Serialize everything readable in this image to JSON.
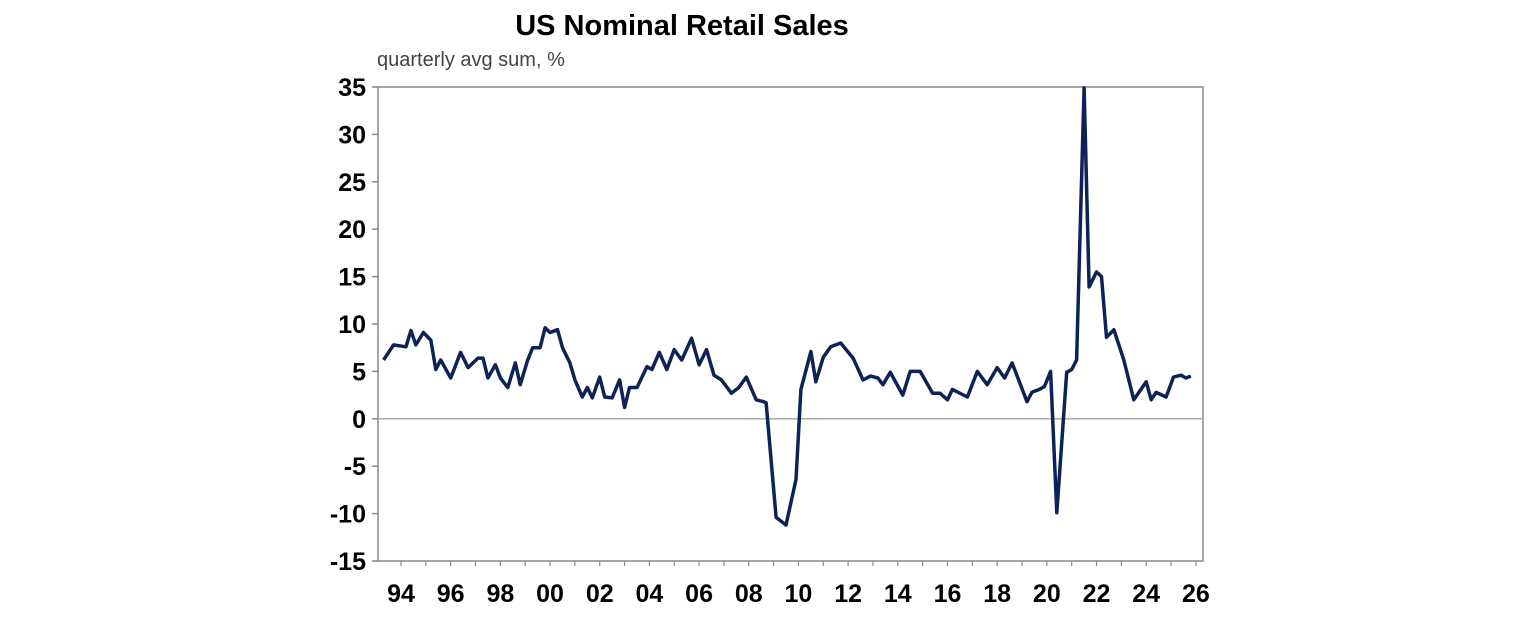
{
  "chart_data": {
    "type": "line",
    "title": "US Nominal Retail Sales",
    "subtitle": "quarterly avg sum, %",
    "xlabel": "",
    "ylabel": "",
    "ylim": [
      -15,
      35
    ],
    "xlim": [
      1993.1,
      2026.3
    ],
    "yticks": [
      35,
      30,
      25,
      20,
      15,
      10,
      5,
      0,
      -5,
      -10,
      -15
    ],
    "xticks": [
      {
        "year": 1994,
        "label": "94"
      },
      {
        "year": 1996,
        "label": "96"
      },
      {
        "year": 1998,
        "label": "98"
      },
      {
        "year": 2000,
        "label": "00"
      },
      {
        "year": 2002,
        "label": "02"
      },
      {
        "year": 2004,
        "label": "04"
      },
      {
        "year": 2006,
        "label": "06"
      },
      {
        "year": 2008,
        "label": "08"
      },
      {
        "year": 2010,
        "label": "10"
      },
      {
        "year": 2012,
        "label": "12"
      },
      {
        "year": 2014,
        "label": "14"
      },
      {
        "year": 2016,
        "label": "16"
      },
      {
        "year": 2018,
        "label": "18"
      },
      {
        "year": 2020,
        "label": "20"
      },
      {
        "year": 2022,
        "label": "22"
      },
      {
        "year": 2024,
        "label": "24"
      },
      {
        "year": 2026,
        "label": "26"
      }
    ],
    "grid": false,
    "zero_line": true,
    "line_color": "#0d2257",
    "series": [
      {
        "x": [
          1993.3,
          1993.7,
          1994.2,
          1994.4,
          1994.6,
          1994.9,
          1995.2,
          1995.4,
          1995.6,
          1996.0,
          1996.4,
          1996.7,
          1997.1,
          1997.3,
          1997.5,
          1997.8,
          1998.0,
          1998.3,
          1998.6,
          1998.8,
          1999.1,
          1999.3,
          1999.6,
          1999.8,
          2000.0,
          2000.3,
          2000.5,
          2000.8,
          2001.0,
          2001.3,
          2001.5,
          2001.7,
          2002.0,
          2002.2,
          2002.5,
          2002.8,
          2003.0,
          2003.2,
          2003.5,
          2003.9,
          2004.1,
          2004.4,
          2004.7,
          2005.0,
          2005.3,
          2005.7,
          2006.0,
          2006.3,
          2006.6,
          2006.9,
          2007.3,
          2007.6,
          2007.9,
          2008.3,
          2008.6,
          2008.7,
          2009.1,
          2009.5,
          2009.9,
          2010.1,
          2010.5,
          2010.7,
          2011.0,
          2011.3,
          2011.7,
          2012.2,
          2012.6,
          2012.9,
          2013.2,
          2013.4,
          2013.7,
          2014.2,
          2014.5,
          2014.9,
          2015.4,
          2015.7,
          2016.0,
          2016.2,
          2016.8,
          2017.2,
          2017.6,
          2018.0,
          2018.3,
          2018.6,
          2019.2,
          2019.4,
          2019.7,
          2019.9,
          2020.15,
          2020.4,
          2020.8,
          2021.0,
          2021.2,
          2021.5,
          2021.7,
          2022.0,
          2022.2,
          2022.4,
          2022.7,
          2023.1,
          2023.5,
          2024.0,
          2024.2,
          2024.4,
          2024.8,
          2025.1,
          2025.4,
          2025.6,
          2025.8
        ],
        "y": [
          6.2,
          7.8,
          7.6,
          9.3,
          7.8,
          9.1,
          8.3,
          5.2,
          6.2,
          4.3,
          7.0,
          5.4,
          6.4,
          6.4,
          4.3,
          5.7,
          4.3,
          3.3,
          5.9,
          3.6,
          6.2,
          7.5,
          7.5,
          9.6,
          9.1,
          9.4,
          7.5,
          5.9,
          4.1,
          2.3,
          3.3,
          2.2,
          4.4,
          2.3,
          2.2,
          4.1,
          1.2,
          3.3,
          3.3,
          5.5,
          5.2,
          7.0,
          5.2,
          7.3,
          6.2,
          8.5,
          5.7,
          7.3,
          4.6,
          4.1,
          2.7,
          3.3,
          4.4,
          2.0,
          1.8,
          1.7,
          -10.4,
          -11.2,
          -6.4,
          3.1,
          7.1,
          3.9,
          6.5,
          7.6,
          8.0,
          6.4,
          4.1,
          4.5,
          4.3,
          3.6,
          4.9,
          2.5,
          5.0,
          5.0,
          2.7,
          2.7,
          2.0,
          3.1,
          2.3,
          5.0,
          3.6,
          5.4,
          4.3,
          5.9,
          1.8,
          2.8,
          3.1,
          3.4,
          5.0,
          -9.9,
          4.9,
          5.2,
          6.2,
          34.9,
          13.9,
          15.5,
          15.0,
          8.6,
          9.4,
          6.2,
          2.0,
          3.9,
          2.0,
          2.8,
          2.3,
          4.4,
          4.6,
          4.3,
          4.5
        ]
      }
    ]
  }
}
